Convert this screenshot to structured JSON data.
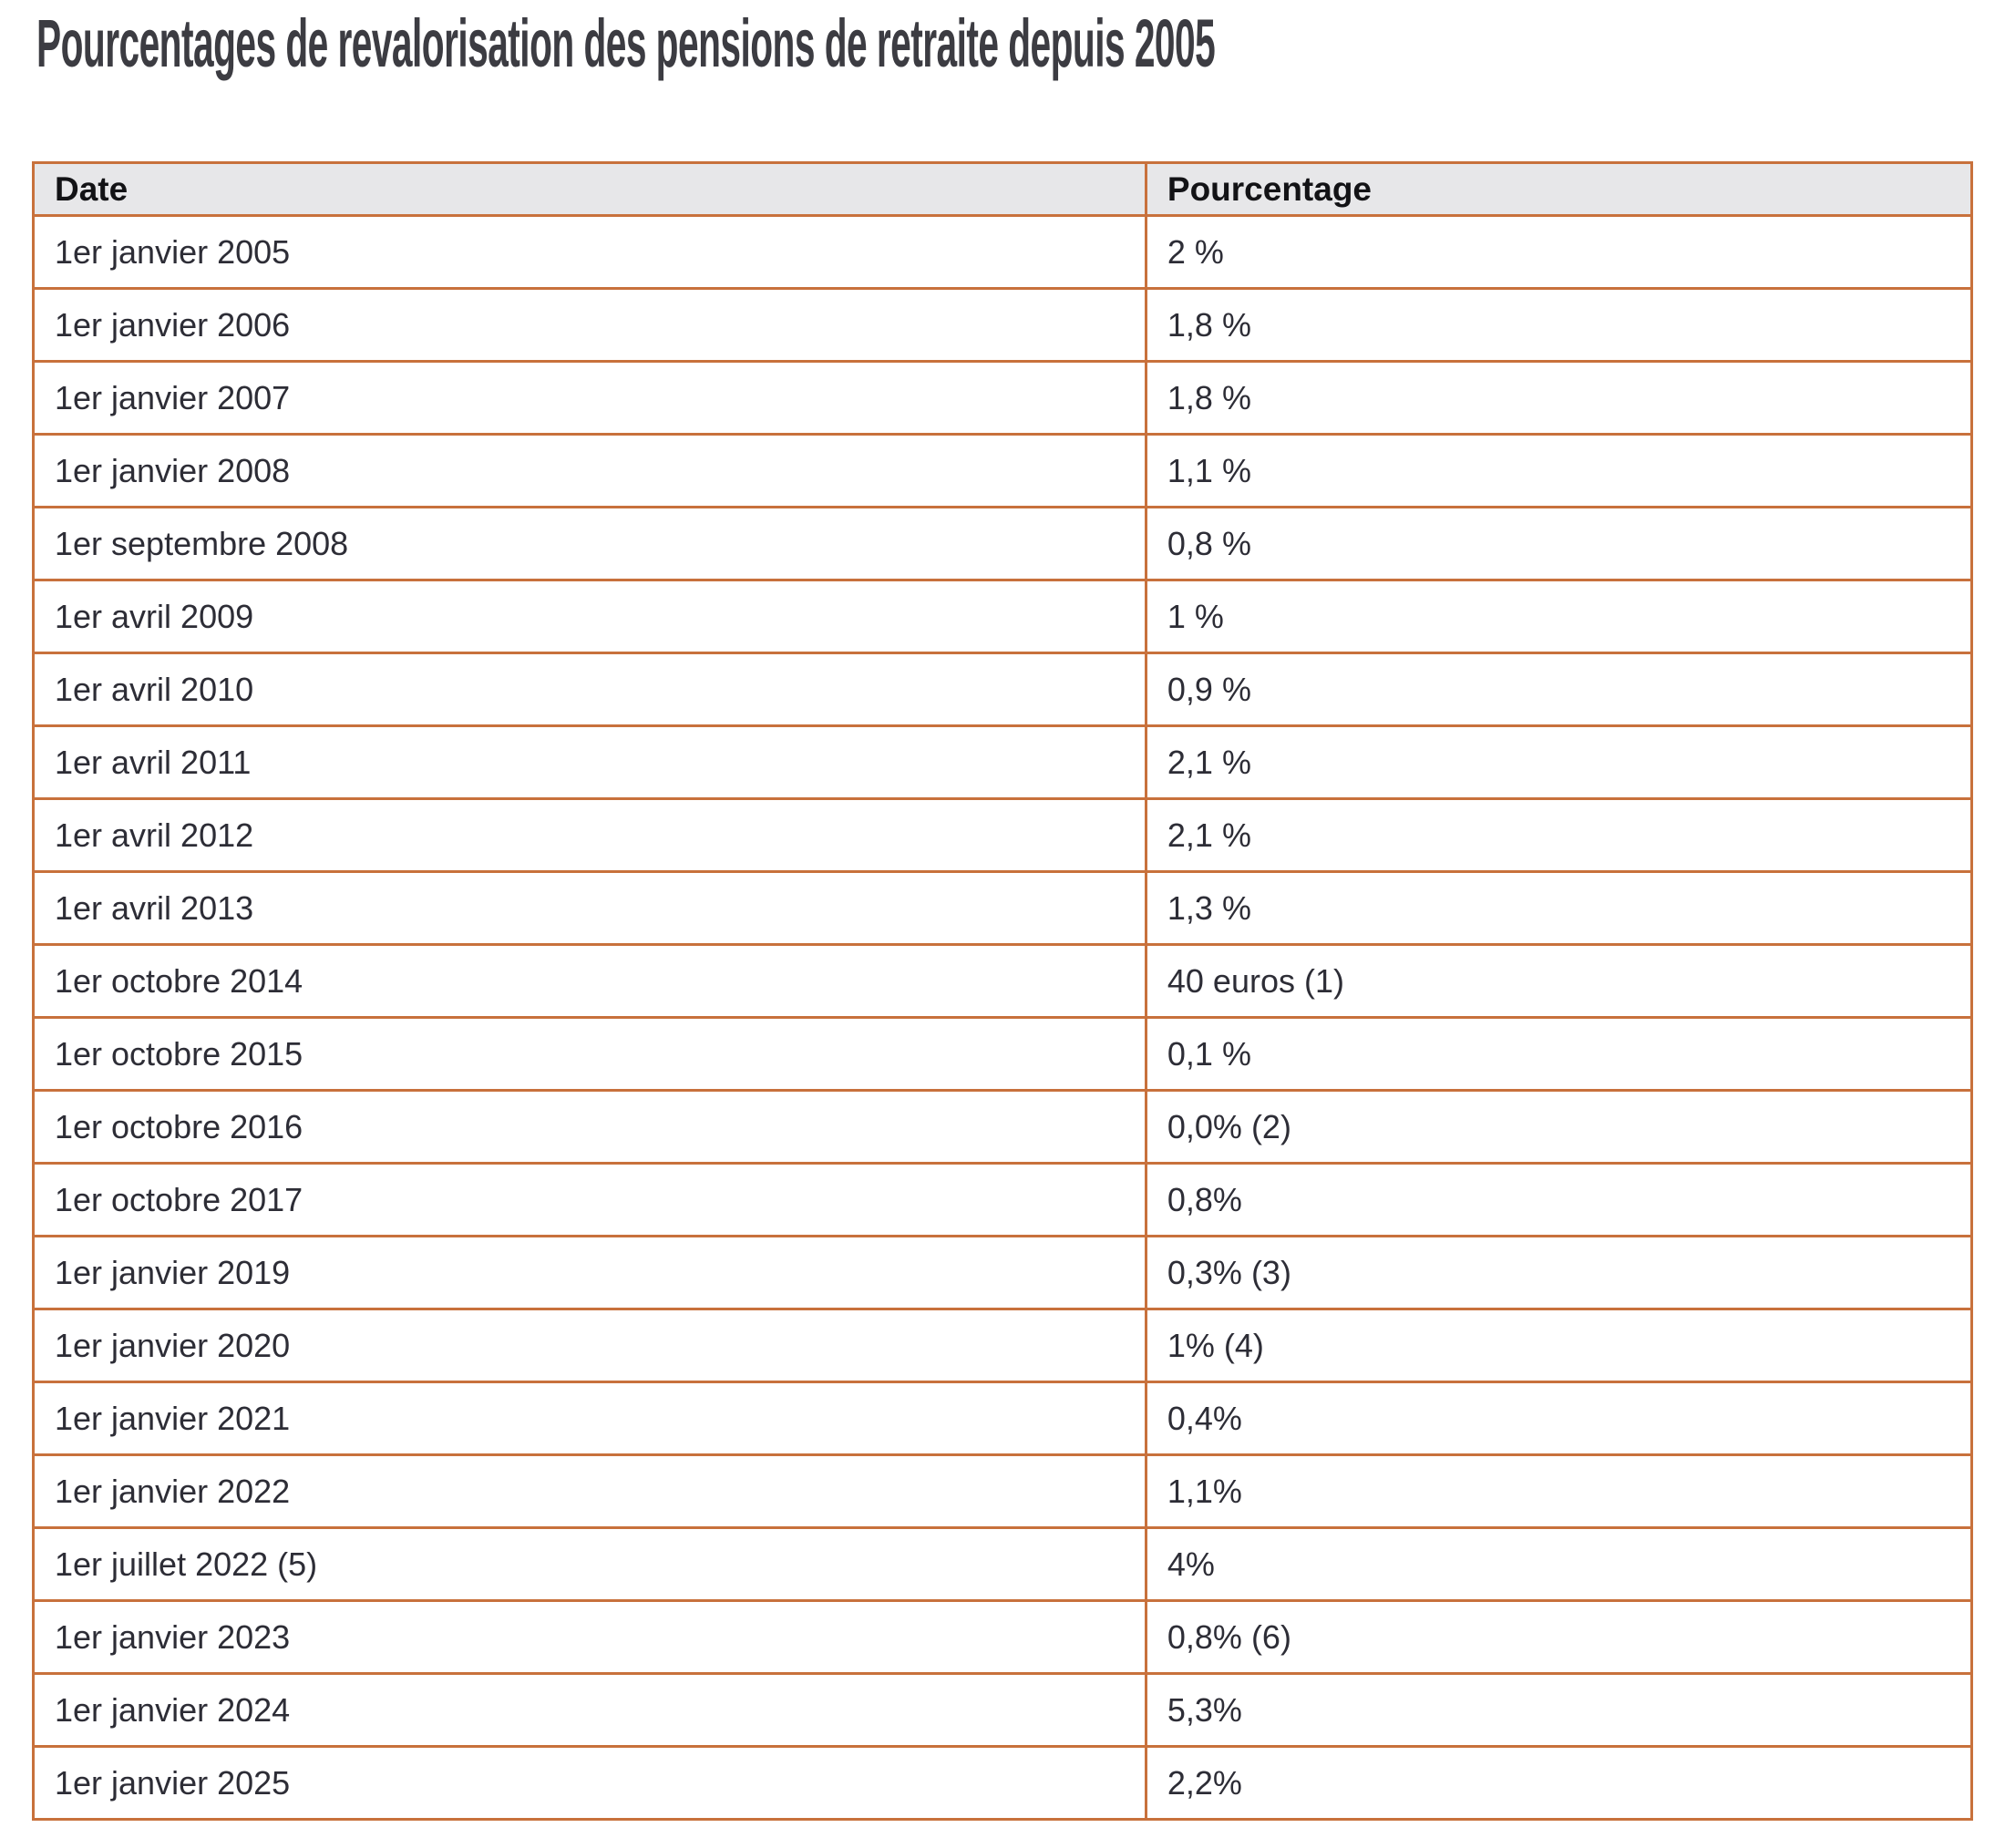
{
  "title": "Pourcentages de revalorisation des pensions de retraite depuis 2005",
  "colors": {
    "border_color": "#c8713c",
    "header_bg": "#e7e7e9",
    "title_color": "#3c3c42",
    "cell_color": "#2d2d36",
    "header_text": "#131316",
    "page_bg": "#ffffff"
  },
  "table": {
    "headers": [
      "Date",
      "Pourcentage"
    ],
    "column_widths_percent": [
      57.4,
      42.6
    ],
    "rows": [
      [
        "1er janvier 2005",
        "2 %"
      ],
      [
        "1er janvier 2006",
        "1,8 %"
      ],
      [
        "1er janvier 2007",
        "1,8 %"
      ],
      [
        "1er janvier 2008",
        "1,1 %"
      ],
      [
        "1er septembre 2008",
        "0,8 %"
      ],
      [
        "1er avril 2009",
        "1 %"
      ],
      [
        "1er avril 2010",
        "0,9 %"
      ],
      [
        "1er avril 2011",
        "2,1 %"
      ],
      [
        "1er avril 2012",
        "2,1 %"
      ],
      [
        "1er avril 2013",
        "1,3 %"
      ],
      [
        "1er octobre 2014",
        "40 euros (1)"
      ],
      [
        "1er octobre 2015",
        "0,1 %"
      ],
      [
        "1er octobre 2016",
        "0,0% (2)"
      ],
      [
        "1er octobre 2017",
        "0,8%"
      ],
      [
        "1er janvier 2019",
        "0,3% (3)"
      ],
      [
        "1er janvier 2020",
        "1% (4)"
      ],
      [
        "1er janvier 2021",
        "0,4%"
      ],
      [
        "1er janvier 2022",
        "1,1%"
      ],
      [
        "1er juillet 2022 (5)",
        "4%"
      ],
      [
        "1er janvier 2023",
        "0,8% (6)"
      ],
      [
        "1er janvier 2024",
        "5,3%"
      ],
      [
        "1er janvier 2025",
        "2,2%"
      ]
    ]
  }
}
